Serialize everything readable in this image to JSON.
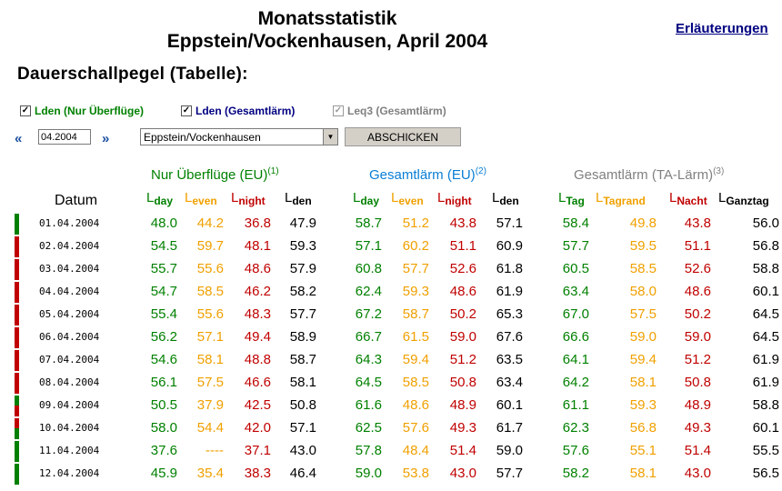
{
  "header": {
    "title_line1": "Monatsstatistik",
    "title_line2": "Eppstein/Vockenhausen, April 2004",
    "help_link": "Erläuterungen"
  },
  "subtitle": "Dauerschallpegel (Tabelle):",
  "checkboxes": [
    {
      "label": "Lden (Nur Überflüge)",
      "checked": true,
      "color": "#008000"
    },
    {
      "label": "Lden (Gesamtlärm)",
      "checked": true,
      "color": "#000080"
    },
    {
      "label": "Leq3 (Gesamtlärm)",
      "checked": true,
      "color": "#808080"
    }
  ],
  "controls": {
    "prev_icon": "double-chevron-left-icon",
    "date_value": "04.2004",
    "next_icon": "double-chevron-right-icon",
    "location_value": "Eppstein/Vockenhausen",
    "submit_label": "ABSCHICKEN"
  },
  "groups": [
    {
      "label": "Nur Überflüge (EU)",
      "note": "(1)"
    },
    {
      "label": "Gesamtlärm (EU)",
      "note": "(2)"
    },
    {
      "label": "Gesamtlärm (TA-Lärm)",
      "note": "(3)"
    }
  ],
  "columns": {
    "datum": "Datum",
    "g1": [
      {
        "L": "L",
        "s": "day"
      },
      {
        "L": "L",
        "s": "even"
      },
      {
        "L": "L",
        "s": "night"
      },
      {
        "L": "L",
        "s": "den"
      }
    ],
    "g2": [
      {
        "L": "L",
        "s": "day"
      },
      {
        "L": "L",
        "s": "even"
      },
      {
        "L": "L",
        "s": "night"
      },
      {
        "L": "L",
        "s": "den"
      }
    ],
    "g3": [
      {
        "L": "L",
        "s": "Tag"
      },
      {
        "L": "L",
        "s": "Tagrand"
      },
      {
        "L": "L",
        "s": "Nacht"
      },
      {
        "L": "L",
        "s": "Ganztag"
      }
    ]
  },
  "colors": {
    "green": "#008000",
    "orange": "#f0a000",
    "red": "#c00000",
    "blue": "#0a7ed6",
    "gray": "#808080"
  },
  "rows": [
    {
      "date": "01.04.2004",
      "bar": [
        "green",
        "green"
      ],
      "v": [
        "48.0",
        "44.2",
        "36.8",
        "47.9",
        "58.7",
        "51.2",
        "43.8",
        "57.1",
        "58.4",
        "49.8",
        "43.8",
        "56.0"
      ]
    },
    {
      "date": "02.04.2004",
      "bar": [
        "red",
        "red"
      ],
      "v": [
        "54.5",
        "59.7",
        "48.1",
        "59.3",
        "57.1",
        "60.2",
        "51.1",
        "60.9",
        "57.7",
        "59.5",
        "51.1",
        "56.8"
      ]
    },
    {
      "date": "03.04.2004",
      "bar": [
        "red",
        "red"
      ],
      "v": [
        "55.7",
        "55.6",
        "48.6",
        "57.9",
        "60.8",
        "57.7",
        "52.6",
        "61.8",
        "60.5",
        "58.5",
        "52.6",
        "58.8"
      ]
    },
    {
      "date": "04.04.2004",
      "bar": [
        "red",
        "red"
      ],
      "v": [
        "54.7",
        "58.5",
        "46.2",
        "58.2",
        "62.4",
        "59.3",
        "48.6",
        "61.9",
        "63.4",
        "58.0",
        "48.6",
        "60.1"
      ]
    },
    {
      "date": "05.04.2004",
      "bar": [
        "red",
        "red"
      ],
      "v": [
        "55.4",
        "55.6",
        "48.3",
        "57.7",
        "67.2",
        "58.7",
        "50.2",
        "65.3",
        "67.0",
        "57.5",
        "50.2",
        "64.5"
      ]
    },
    {
      "date": "06.04.2004",
      "bar": [
        "red",
        "red"
      ],
      "v": [
        "56.2",
        "57.1",
        "49.4",
        "58.9",
        "66.7",
        "61.5",
        "59.0",
        "67.6",
        "66.6",
        "59.0",
        "59.0",
        "64.5"
      ]
    },
    {
      "date": "07.04.2004",
      "bar": [
        "red",
        "red"
      ],
      "v": [
        "54.6",
        "58.1",
        "48.8",
        "58.7",
        "64.3",
        "59.4",
        "51.2",
        "63.5",
        "64.1",
        "59.4",
        "51.2",
        "61.9"
      ]
    },
    {
      "date": "08.04.2004",
      "bar": [
        "red",
        "red"
      ],
      "v": [
        "56.1",
        "57.5",
        "46.6",
        "58.1",
        "64.5",
        "58.5",
        "50.8",
        "63.4",
        "64.2",
        "58.1",
        "50.8",
        "61.9"
      ]
    },
    {
      "date": "09.04.2004",
      "bar": [
        "green",
        "red"
      ],
      "v": [
        "50.5",
        "37.9",
        "42.5",
        "50.8",
        "61.6",
        "48.6",
        "48.9",
        "60.1",
        "61.1",
        "59.3",
        "48.9",
        "58.8"
      ]
    },
    {
      "date": "10.04.2004",
      "bar": [
        "red",
        "green"
      ],
      "v": [
        "58.0",
        "54.4",
        "42.0",
        "57.1",
        "62.5",
        "57.6",
        "49.3",
        "61.7",
        "62.3",
        "56.8",
        "49.3",
        "60.1"
      ]
    },
    {
      "date": "11.04.2004",
      "bar": [
        "green",
        "green"
      ],
      "v": [
        "37.6",
        "----",
        "37.1",
        "43.0",
        "57.8",
        "48.4",
        "51.4",
        "59.0",
        "57.6",
        "55.1",
        "51.4",
        "55.5"
      ]
    },
    {
      "date": "12.04.2004",
      "bar": [
        "green",
        "green"
      ],
      "v": [
        "45.9",
        "35.4",
        "38.3",
        "46.4",
        "59.0",
        "53.8",
        "43.0",
        "57.7",
        "58.2",
        "58.1",
        "43.0",
        "56.5"
      ]
    }
  ]
}
